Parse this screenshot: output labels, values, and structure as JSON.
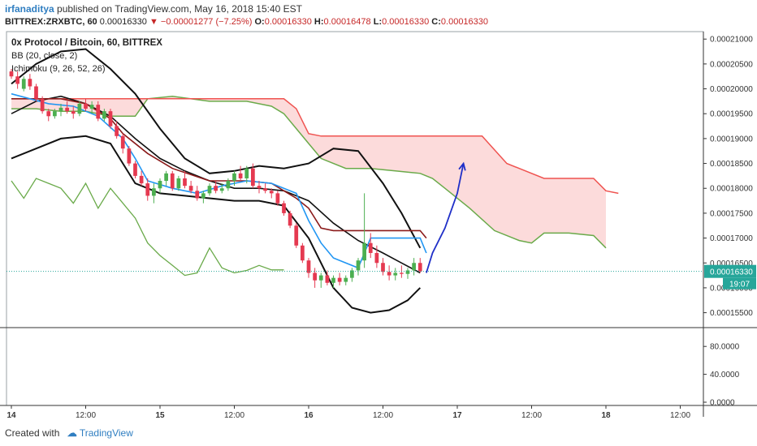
{
  "header": {
    "author": "irfanaditya",
    "published": "published on TradingView.com, May 16, 2018 15:40 EST",
    "symbol": "BITTREX:ZRXBTC, 60",
    "last": "0.00016330",
    "change": "−0.00001277 (−7.25%)",
    "open_label": "O:",
    "open": "0.00016330",
    "high_label": "H:",
    "high": "0.00016478",
    "low_label": "L:",
    "low": "0.00016330",
    "close_label": "C:",
    "close": "0.00016330"
  },
  "legend": {
    "title": "0x Protocol / Bitcoin, 60, BITTREX",
    "bb": "BB (20, close, 2)",
    "ichimoku": "Ichimoku (9, 26, 52, 26)"
  },
  "footer": {
    "created_with": "Created with",
    "brand": "TradingView"
  },
  "colors": {
    "up": "#4caf50",
    "down": "#e53950",
    "bb": "#111111",
    "tenkan": "#2196f3",
    "kijun": "#8b1a1a",
    "lagging": "#6aaa4a",
    "spanA": "#6aaa4a",
    "spanB": "#ef5350",
    "cloud": "#fbd5d5",
    "arrow": "#1f2fc8",
    "last_price_badge": "#26a69a"
  },
  "chart_data": {
    "type": "candlestick",
    "price_axis": {
      "min": 0.000152,
      "max": 0.0002115,
      "ticks": [
        "0.00021000",
        "0.00020500",
        "0.00020000",
        "0.00019500",
        "0.00019000",
        "0.00018500",
        "0.00018000",
        "0.00017500",
        "0.00017000",
        "0.00016500",
        "0.00016000",
        "0.00015500"
      ]
    },
    "last_price_label": "0.00016330",
    "countdown_label": "19:07",
    "oscillator_axis": {
      "min": 0,
      "max": 100,
      "ticks": [
        "80.0000",
        "40.0000",
        "0.0000"
      ]
    },
    "time_axis": {
      "min": 0,
      "max": 96,
      "ticks": [
        {
          "t": 0,
          "label": "14"
        },
        {
          "t": 12,
          "label": "12:00"
        },
        {
          "t": 24,
          "label": "15"
        },
        {
          "t": 36,
          "label": "12:00"
        },
        {
          "t": 48,
          "label": "16"
        },
        {
          "t": 60,
          "label": "12:00"
        },
        {
          "t": 72,
          "label": "17"
        },
        {
          "t": 84,
          "label": "12:00"
        },
        {
          "t": 96,
          "label": "18"
        },
        {
          "t": 108,
          "label": "12:00"
        }
      ]
    },
    "candles_start_t": 0,
    "candles": [
      [
        0.0002035,
        0.000204,
        0.000202,
        0.0002025
      ],
      [
        0.0002025,
        0.0002035,
        0.0002,
        0.000201
      ],
      [
        0.0002,
        0.0002025,
        0.0001995,
        0.000202
      ],
      [
        0.000202,
        0.000203,
        0.0001998,
        0.0002005
      ],
      [
        0.0002005,
        0.000201,
        0.0001975,
        0.000198
      ],
      [
        0.000198,
        0.0001985,
        0.000195,
        0.0001955
      ],
      [
        0.0001955,
        0.000196,
        0.0001935,
        0.0001945
      ],
      [
        0.0001945,
        0.000196,
        0.000194,
        0.0001955
      ],
      [
        0.0001955,
        0.000197,
        0.0001945,
        0.0001962
      ],
      [
        0.0001962,
        0.0001975,
        0.000195,
        0.0001955
      ],
      [
        0.0001955,
        0.0001965,
        0.000194,
        0.000195
      ],
      [
        0.000195,
        0.0001975,
        0.0001945,
        0.000197
      ],
      [
        0.000197,
        0.000198,
        0.0001955,
        0.000196
      ],
      [
        0.000196,
        0.0001975,
        0.000195,
        0.0001968
      ],
      [
        0.0001968,
        0.0001975,
        0.0001935,
        0.000194
      ],
      [
        0.000194,
        0.000196,
        0.0001935,
        0.0001955
      ],
      [
        0.0001955,
        0.000196,
        0.000192,
        0.0001925
      ],
      [
        0.0001925,
        0.0001935,
        0.00019,
        0.0001905
      ],
      [
        0.0001905,
        0.000191,
        0.000187,
        0.000188
      ],
      [
        0.000188,
        0.0001885,
        0.0001845,
        0.000185
      ],
      [
        0.000185,
        0.0001855,
        0.000182,
        0.0001825
      ],
      [
        0.0001825,
        0.0001835,
        0.0001805,
        0.000181
      ],
      [
        0.000181,
        0.000182,
        0.0001775,
        0.0001785
      ],
      [
        0.0001785,
        0.000181,
        0.000177,
        0.00018
      ],
      [
        0.00018,
        0.000182,
        0.000179,
        0.0001815
      ],
      [
        0.0001815,
        0.0001835,
        0.0001805,
        0.000183
      ],
      [
        0.000183,
        0.0001835,
        0.0001795,
        0.00018
      ],
      [
        0.00018,
        0.0001825,
        0.0001795,
        0.000182
      ],
      [
        0.000182,
        0.0001835,
        0.00018,
        0.0001805
      ],
      [
        0.0001805,
        0.0001815,
        0.000179,
        0.0001795
      ],
      [
        0.0001795,
        0.0001805,
        0.0001775,
        0.000178
      ],
      [
        0.000178,
        0.0001795,
        0.000177,
        0.000179
      ],
      [
        0.000179,
        0.000181,
        0.0001785,
        0.0001805
      ],
      [
        0.0001805,
        0.0001815,
        0.000179,
        0.0001795
      ],
      [
        0.0001795,
        0.000181,
        0.000179,
        0.00018
      ],
      [
        0.00018,
        0.000182,
        0.0001795,
        0.0001815
      ],
      [
        0.0001815,
        0.0001835,
        0.0001805,
        0.000183
      ],
      [
        0.000183,
        0.0001845,
        0.0001815,
        0.000182
      ],
      [
        0.000182,
        0.0001845,
        0.000181,
        0.000184
      ],
      [
        0.000184,
        0.000185,
        0.00018,
        0.0001805
      ],
      [
        0.0001805,
        0.0001815,
        0.000179,
        0.00018
      ],
      [
        0.00018,
        0.000181,
        0.000179,
        0.0001795
      ],
      [
        0.0001795,
        0.00018,
        0.000178,
        0.000179
      ],
      [
        0.000179,
        0.0001795,
        0.0001765,
        0.000177
      ],
      [
        0.000177,
        0.0001775,
        0.0001745,
        0.000175
      ],
      [
        0.000175,
        0.0001755,
        0.000172,
        0.0001725
      ],
      [
        0.0001725,
        0.000173,
        0.000168,
        0.0001685
      ],
      [
        0.0001685,
        0.000169,
        0.000165,
        0.0001655
      ],
      [
        0.0001655,
        0.000166,
        0.000162,
        0.000163
      ],
      [
        0.000163,
        0.000164,
        0.00016,
        0.0001615
      ],
      [
        0.0001615,
        0.000163,
        0.00016,
        0.0001625
      ],
      [
        0.0001625,
        0.0001635,
        0.0001605,
        0.000161
      ],
      [
        0.000161,
        0.0001625,
        0.00016,
        0.000162
      ],
      [
        0.000162,
        0.000163,
        0.0001605,
        0.0001612
      ],
      [
        0.0001612,
        0.0001625,
        0.0001605,
        0.000162
      ],
      [
        0.000162,
        0.000164,
        0.0001612,
        0.0001635
      ],
      [
        0.0001635,
        0.000166,
        0.0001625,
        0.0001655
      ],
      [
        0.0001655,
        0.000179,
        0.000164,
        0.000169
      ],
      [
        0.000169,
        0.000171,
        0.000166,
        0.000167
      ],
      [
        0.000167,
        0.0001685,
        0.000164,
        0.000165
      ],
      [
        0.000165,
        0.000166,
        0.0001625,
        0.0001632
      ],
      [
        0.0001632,
        0.0001645,
        0.0001615,
        0.0001625
      ],
      [
        0.0001625,
        0.000164,
        0.0001615,
        0.000163
      ],
      [
        0.000163,
        0.0001645,
        0.000162,
        0.0001628
      ],
      [
        0.0001628,
        0.000164,
        0.0001618,
        0.0001635
      ],
      [
        0.0001635,
        0.000166,
        0.0001625,
        0.000165
      ],
      [
        0.000165,
        0.000166,
        0.000163,
        0.0001633
      ]
    ],
    "bb_upper": [
      [
        0,
        0.000201
      ],
      [
        4,
        0.000205
      ],
      [
        8,
        0.0002075
      ],
      [
        12,
        0.000208
      ],
      [
        16,
        0.000204
      ],
      [
        20,
        0.000199
      ],
      [
        24,
        0.000192
      ],
      [
        28,
        0.000186
      ],
      [
        32,
        0.000183
      ],
      [
        36,
        0.0001835
      ],
      [
        40,
        0.0001845
      ],
      [
        44,
        0.000184
      ],
      [
        48,
        0.000185
      ],
      [
        52,
        0.000188
      ],
      [
        56,
        0.0001875
      ],
      [
        60,
        0.000181
      ],
      [
        63,
        0.000175
      ],
      [
        66,
        0.000168
      ]
    ],
    "bb_middle": [
      [
        0,
        0.000195
      ],
      [
        4,
        0.0001975
      ],
      [
        8,
        0.0001985
      ],
      [
        12,
        0.000197
      ],
      [
        16,
        0.0001945
      ],
      [
        20,
        0.00019
      ],
      [
        24,
        0.000186
      ],
      [
        28,
        0.0001835
      ],
      [
        32,
        0.0001815
      ],
      [
        36,
        0.00018
      ],
      [
        40,
        0.00018
      ],
      [
        44,
        0.0001795
      ],
      [
        48,
        0.0001775
      ],
      [
        52,
        0.000173
      ],
      [
        56,
        0.0001695
      ],
      [
        60,
        0.000167
      ],
      [
        63,
        0.000165
      ],
      [
        66,
        0.000163
      ]
    ],
    "bb_lower": [
      [
        0,
        0.000186
      ],
      [
        4,
        0.000188
      ],
      [
        8,
        0.00019
      ],
      [
        12,
        0.0001905
      ],
      [
        16,
        0.000189
      ],
      [
        20,
        0.000181
      ],
      [
        24,
        0.000179
      ],
      [
        28,
        0.0001785
      ],
      [
        32,
        0.000178
      ],
      [
        36,
        0.0001775
      ],
      [
        40,
        0.0001775
      ],
      [
        44,
        0.0001765
      ],
      [
        48,
        0.00017
      ],
      [
        52,
        0.00016
      ],
      [
        55,
        0.000156
      ],
      [
        58,
        0.000155
      ],
      [
        61,
        0.0001555
      ],
      [
        64,
        0.0001575
      ],
      [
        66,
        0.00016
      ]
    ],
    "tenkan": [
      [
        0,
        0.000199
      ],
      [
        6,
        0.000197
      ],
      [
        10,
        0.0001965
      ],
      [
        14,
        0.0001945
      ],
      [
        18,
        0.00019
      ],
      [
        20,
        0.000186
      ],
      [
        22,
        0.0001815
      ],
      [
        26,
        0.00018
      ],
      [
        30,
        0.000179
      ],
      [
        34,
        0.0001805
      ],
      [
        38,
        0.0001815
      ],
      [
        42,
        0.000181
      ],
      [
        46,
        0.000179
      ],
      [
        48,
        0.0001735
      ],
      [
        50,
        0.000169
      ],
      [
        52,
        0.000166
      ],
      [
        56,
        0.000164
      ],
      [
        58,
        0.00017
      ],
      [
        62,
        0.00017
      ],
      [
        66,
        0.00017
      ],
      [
        67,
        0.000167
      ]
    ],
    "kijun": [
      [
        0,
        0.000198
      ],
      [
        8,
        0.000198
      ],
      [
        12,
        0.000197
      ],
      [
        16,
        0.000194
      ],
      [
        18,
        0.000191
      ],
      [
        22,
        0.000187
      ],
      [
        26,
        0.000184
      ],
      [
        32,
        0.0001815
      ],
      [
        38,
        0.0001815
      ],
      [
        42,
        0.000181
      ],
      [
        44,
        0.0001795
      ],
      [
        46,
        0.000178
      ],
      [
        48,
        0.000176
      ],
      [
        50,
        0.000172
      ],
      [
        52,
        0.0001715
      ],
      [
        66,
        0.0001715
      ],
      [
        67,
        0.00017
      ]
    ],
    "lagging": [
      [
        0,
        0.0001815
      ],
      [
        2,
        0.000178
      ],
      [
        4,
        0.000182
      ],
      [
        6,
        0.000181
      ],
      [
        8,
        0.00018
      ],
      [
        10,
        0.000177
      ],
      [
        12,
        0.000181
      ],
      [
        14,
        0.000176
      ],
      [
        16,
        0.00018
      ],
      [
        18,
        0.000177
      ],
      [
        20,
        0.000174
      ],
      [
        22,
        0.000169
      ],
      [
        24,
        0.0001665
      ],
      [
        26,
        0.0001645
      ],
      [
        28,
        0.0001625
      ],
      [
        30,
        0.000163
      ],
      [
        32,
        0.000168
      ],
      [
        34,
        0.000164
      ],
      [
        36,
        0.000163
      ],
      [
        38,
        0.0001635
      ],
      [
        40,
        0.0001645
      ],
      [
        42,
        0.0001636
      ],
      [
        44,
        0.0001636
      ]
    ],
    "span_a": [
      [
        0,
        0.000196
      ],
      [
        4,
        0.000196
      ],
      [
        8,
        0.0001955
      ],
      [
        12,
        0.0001955
      ],
      [
        16,
        0.0001945
      ],
      [
        20,
        0.0001945
      ],
      [
        22,
        0.000198
      ],
      [
        26,
        0.0001985
      ],
      [
        32,
        0.0001975
      ],
      [
        38,
        0.0001975
      ],
      [
        42,
        0.0001965
      ],
      [
        44,
        0.000195
      ],
      [
        46,
        0.000192
      ],
      [
        48,
        0.000189
      ],
      [
        50,
        0.000186
      ],
      [
        54,
        0.000184
      ],
      [
        58,
        0.000184
      ],
      [
        62,
        0.0001835
      ],
      [
        66,
        0.000183
      ],
      [
        68,
        0.000182
      ],
      [
        70,
        0.00018
      ],
      [
        74,
        0.000176
      ],
      [
        78,
        0.0001715
      ],
      [
        82,
        0.0001695
      ],
      [
        84,
        0.000169
      ],
      [
        86,
        0.000171
      ],
      [
        90,
        0.000171
      ],
      [
        94,
        0.0001705
      ],
      [
        96,
        0.000168
      ]
    ],
    "span_b": [
      [
        0,
        0.000198
      ],
      [
        4,
        0.000198
      ],
      [
        8,
        0.000198
      ],
      [
        12,
        0.000198
      ],
      [
        16,
        0.000198
      ],
      [
        20,
        0.000198
      ],
      [
        24,
        0.000198
      ],
      [
        28,
        0.000198
      ],
      [
        32,
        0.000198
      ],
      [
        38,
        0.000198
      ],
      [
        44,
        0.000198
      ],
      [
        46,
        0.000196
      ],
      [
        48,
        0.000191
      ],
      [
        50,
        0.0001905
      ],
      [
        76,
        0.0001905
      ],
      [
        80,
        0.000185
      ],
      [
        82,
        0.000184
      ],
      [
        86,
        0.000182
      ],
      [
        94,
        0.000182
      ],
      [
        96,
        0.0001795
      ],
      [
        98,
        0.000179
      ]
    ],
    "projection_arrow": [
      [
        67,
        0.000163
      ],
      [
        68,
        0.000167
      ],
      [
        70,
        0.000172
      ],
      [
        72,
        0.000179
      ],
      [
        73,
        0.000185
      ]
    ],
    "oscillator_values": []
  }
}
